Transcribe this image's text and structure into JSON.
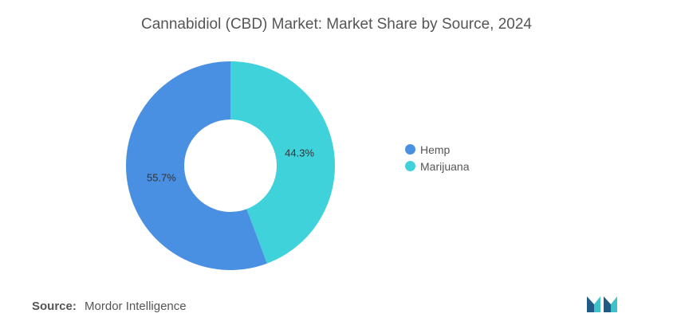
{
  "chart_data": {
    "type": "pie",
    "title": "Cannabidiol (CBD) Market: Market Share by Source, 2024",
    "categories": [
      "Hemp",
      "Marijuana"
    ],
    "values": [
      55.7,
      44.3
    ],
    "labels": [
      "55.7%",
      "44.3%"
    ],
    "colors": [
      "#4a90e2",
      "#3fd2db"
    ],
    "donut": true,
    "legend": "right"
  },
  "source": {
    "label": "Source:",
    "text": "Mordor Intelligence"
  },
  "logo": {
    "icon": "mordor-intelligence-logo-icon",
    "colors": [
      "#1f5b86",
      "#3fc1c9"
    ]
  }
}
